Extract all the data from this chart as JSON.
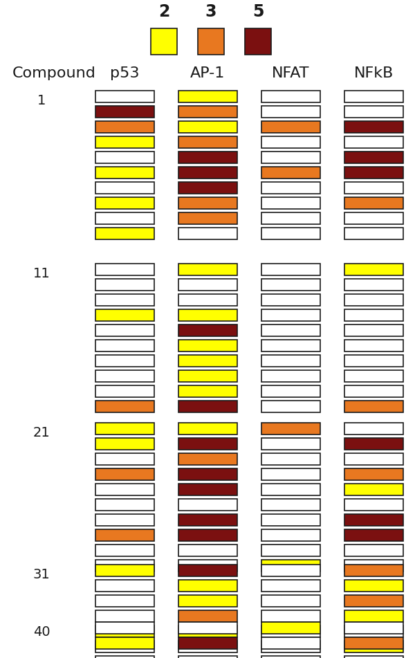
{
  "legend_labels": [
    "2",
    "3",
    "5"
  ],
  "legend_colors": [
    "#FFFF00",
    "#E87820",
    "#7B1010"
  ],
  "col_headers": [
    "p53",
    "AP-1",
    "NFAT",
    "NFkB"
  ],
  "row_label": "Compound",
  "colors": {
    "W": "#FFFFFF",
    "Y": "#FFFF00",
    "O": "#E87820",
    "D": "#7B1010"
  },
  "groups": [
    {
      "label": "1",
      "p53": [
        "W",
        "D",
        "O",
        "Y",
        "W",
        "Y",
        "W",
        "Y",
        "W",
        "Y"
      ],
      "AP-1": [
        "Y",
        "O",
        "Y",
        "O",
        "D",
        "D",
        "D",
        "O",
        "O",
        "W"
      ],
      "NFAT": [
        "W",
        "W",
        "O",
        "W",
        "W",
        "O",
        "W",
        "W",
        "W",
        "W"
      ],
      "NFkB": [
        "W",
        "W",
        "D",
        "W",
        "D",
        "D",
        "W",
        "O",
        "W",
        "W"
      ]
    },
    {
      "label": "11",
      "p53": [
        "W",
        "W",
        "W",
        "Y",
        "W",
        "W",
        "W",
        "W",
        "W",
        "O"
      ],
      "AP-1": [
        "Y",
        "W",
        "W",
        "Y",
        "D",
        "Y",
        "Y",
        "Y",
        "Y",
        "D"
      ],
      "NFAT": [
        "W",
        "W",
        "W",
        "W",
        "W",
        "W",
        "W",
        "W",
        "W",
        "W"
      ],
      "NFkB": [
        "Y",
        "W",
        "W",
        "W",
        "W",
        "W",
        "W",
        "W",
        "W",
        "O"
      ]
    },
    {
      "label": "21",
      "p53": [
        "Y",
        "Y",
        "W",
        "O",
        "W",
        "W",
        "W",
        "O",
        "W",
        "W"
      ],
      "AP-1": [
        "Y",
        "D",
        "O",
        "D",
        "D",
        "W",
        "D",
        "D",
        "W",
        "W"
      ],
      "NFAT": [
        "O",
        "W",
        "W",
        "W",
        "W",
        "W",
        "W",
        "W",
        "W",
        "Y"
      ],
      "NFkB": [
        "W",
        "D",
        "W",
        "O",
        "Y",
        "W",
        "D",
        "D",
        "W",
        "W"
      ]
    },
    {
      "label": "31",
      "p53": [
        "Y",
        "W",
        "W",
        "W",
        "Y",
        "W",
        "W",
        "W",
        "W"
      ],
      "AP-1": [
        "D",
        "Y",
        "Y",
        "O",
        "Y",
        "W",
        "W",
        "Y",
        "W"
      ],
      "NFAT": [
        "W",
        "W",
        "W",
        "W",
        "W",
        "W",
        "W",
        "W",
        "W"
      ],
      "NFkB": [
        "O",
        "Y",
        "O",
        "Y",
        "W",
        "Y",
        "W",
        "W",
        "W"
      ]
    },
    {
      "label": "40",
      "p53": [
        "W",
        "Y"
      ],
      "AP-1": [
        "W",
        "D"
      ],
      "NFAT": [
        "Y",
        "W"
      ],
      "NFkB": [
        "W",
        "O"
      ]
    }
  ]
}
